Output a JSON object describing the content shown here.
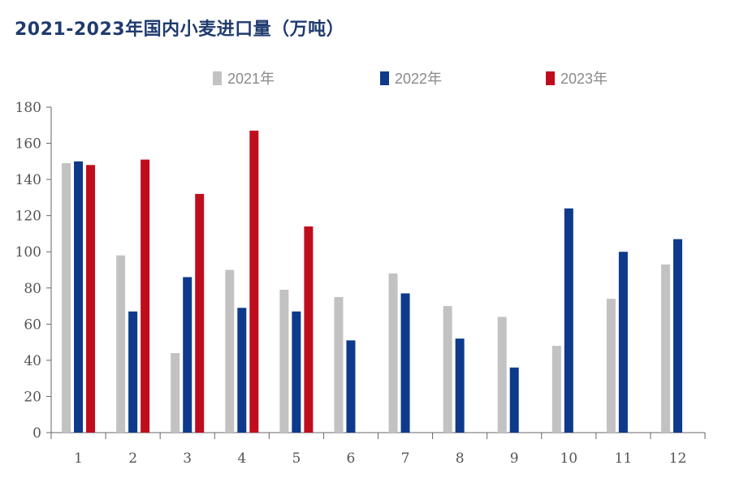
{
  "chart_data": {
    "type": "bar",
    "title": "2021-2023年国内小麦进口量（万吨）",
    "categories": [
      "1",
      "2",
      "3",
      "4",
      "5",
      "6",
      "7",
      "8",
      "9",
      "10",
      "11",
      "12"
    ],
    "series": [
      {
        "name": "2021年",
        "color": "#c2c2c2",
        "values": [
          149,
          98,
          44,
          90,
          79,
          75,
          88,
          70,
          64,
          48,
          74,
          93
        ]
      },
      {
        "name": "2022年",
        "color": "#0d3a8a",
        "values": [
          150,
          67,
          86,
          69,
          67,
          51,
          77,
          52,
          36,
          124,
          100,
          107
        ]
      },
      {
        "name": "2023年",
        "color": "#c00d1e",
        "values": [
          148,
          151,
          132,
          167,
          114,
          null,
          null,
          null,
          null,
          null,
          null,
          null
        ]
      }
    ],
    "ylim": [
      0,
      180
    ],
    "yticks": [
      0,
      20,
      40,
      60,
      80,
      100,
      120,
      140,
      160,
      180
    ],
    "legend_position": "top"
  }
}
